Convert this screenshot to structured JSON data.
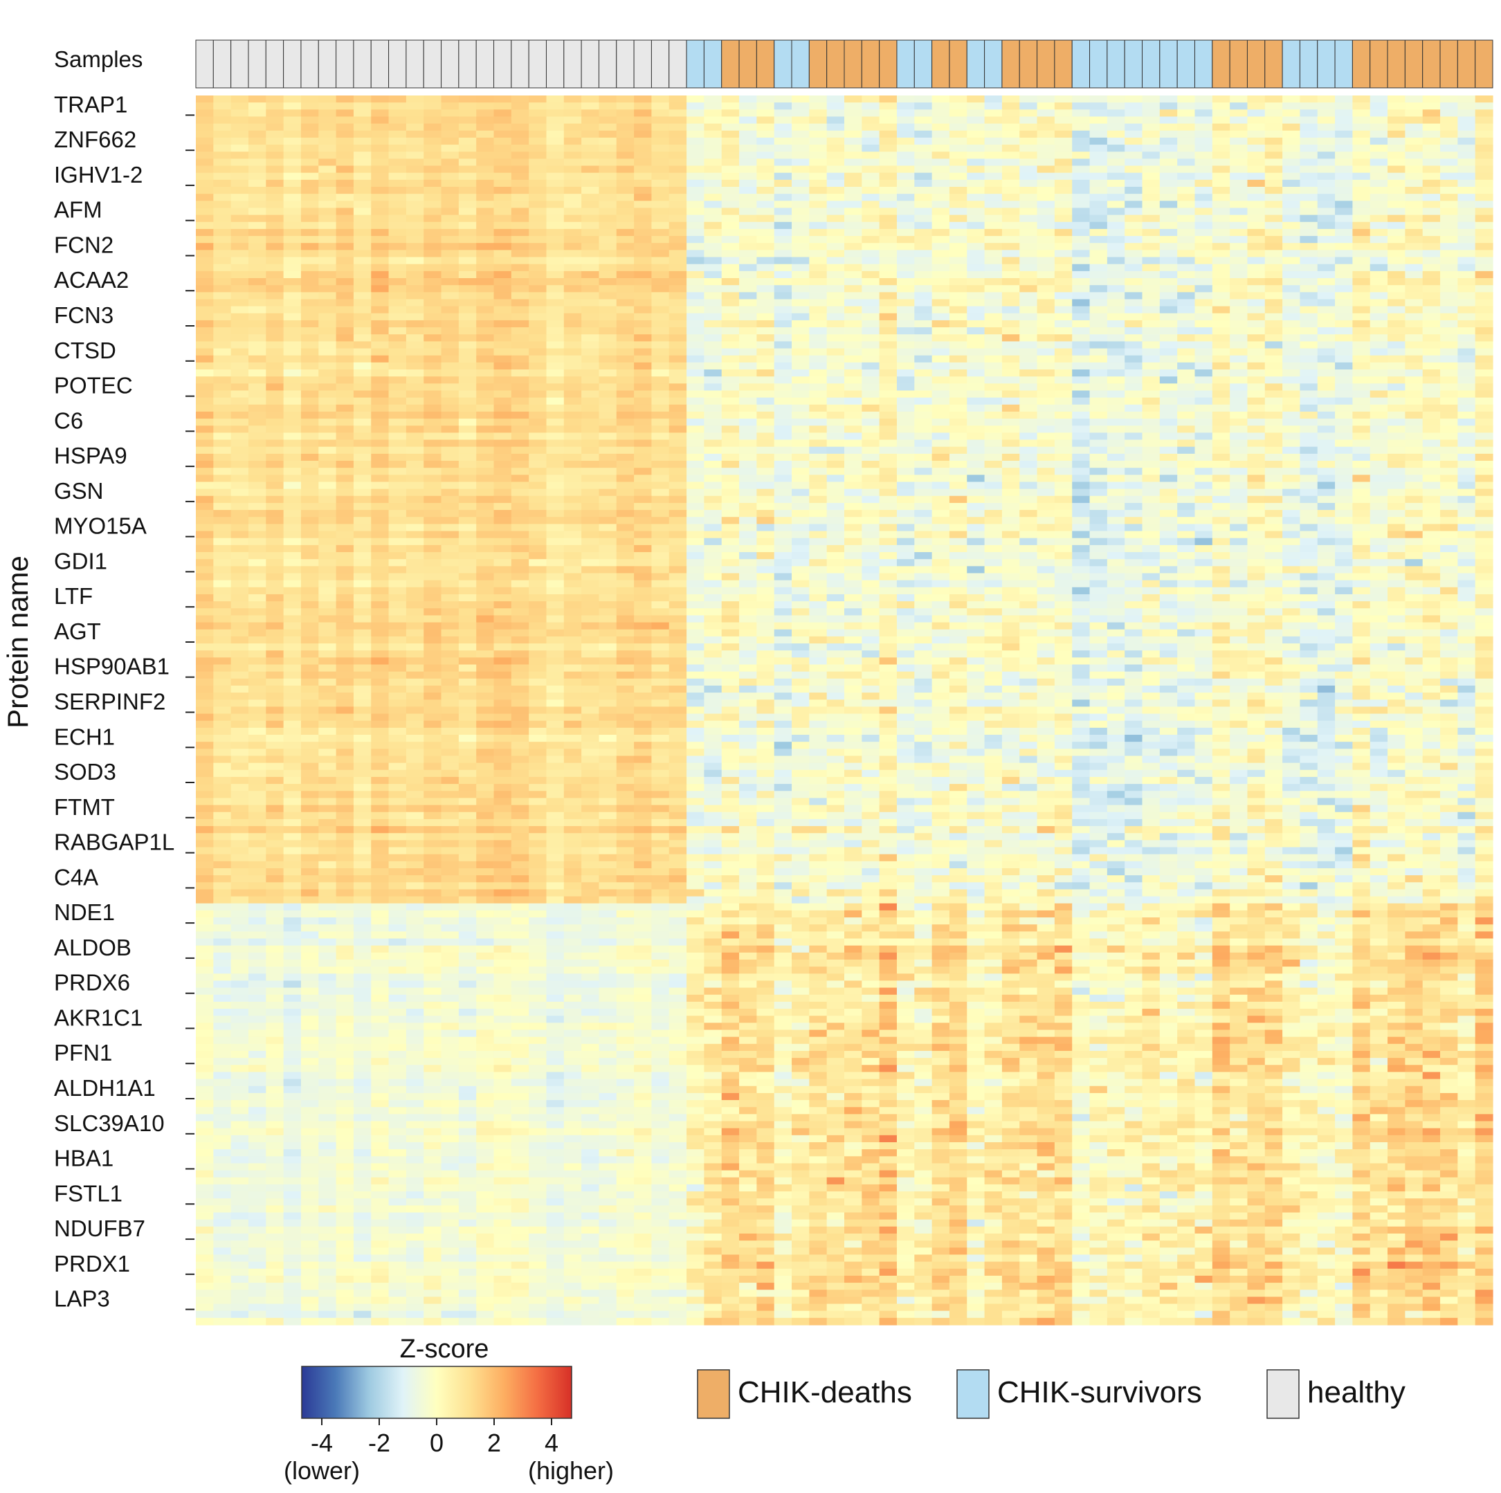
{
  "chart_data": {
    "type": "heatmap",
    "ylabel": "Protein name",
    "annotation_label": "Samples",
    "colorbar": {
      "title": "Z-score",
      "range": [
        -4.7,
        4.7
      ],
      "ticks": [
        -4,
        -2,
        0,
        2,
        4
      ],
      "tick_labels": [
        "-4",
        "-2",
        "0",
        "2",
        "4"
      ],
      "low_label": "(lower)",
      "high_label": "(higher)",
      "stops": [
        "#2b3a96",
        "#4a79b8",
        "#9ecae1",
        "#e0f3f8",
        "#ffffbf",
        "#fee090",
        "#fdae61",
        "#f46d43",
        "#d73027"
      ]
    },
    "groups": [
      {
        "name": "CHIK-deaths",
        "color": "#eeae67"
      },
      {
        "name": "CHIK-survivors",
        "color": "#b3dcf2"
      },
      {
        "name": "healthy",
        "color": "#e8e8e8"
      }
    ],
    "sample_groups": [
      "healthy",
      "healthy",
      "healthy",
      "healthy",
      "healthy",
      "healthy",
      "healthy",
      "healthy",
      "healthy",
      "healthy",
      "healthy",
      "healthy",
      "healthy",
      "healthy",
      "healthy",
      "healthy",
      "healthy",
      "healthy",
      "healthy",
      "healthy",
      "healthy",
      "healthy",
      "healthy",
      "healthy",
      "healthy",
      "healthy",
      "healthy",
      "healthy",
      "CHIK-survivors",
      "CHIK-survivors",
      "CHIK-deaths",
      "CHIK-deaths",
      "CHIK-deaths",
      "CHIK-survivors",
      "CHIK-survivors",
      "CHIK-deaths",
      "CHIK-deaths",
      "CHIK-deaths",
      "CHIK-deaths",
      "CHIK-deaths",
      "CHIK-survivors",
      "CHIK-survivors",
      "CHIK-deaths",
      "CHIK-deaths",
      "CHIK-survivors",
      "CHIK-survivors",
      "CHIK-deaths",
      "CHIK-deaths",
      "CHIK-deaths",
      "CHIK-deaths",
      "CHIK-survivors",
      "CHIK-survivors",
      "CHIK-survivors",
      "CHIK-survivors",
      "CHIK-survivors",
      "CHIK-survivors",
      "CHIK-survivors",
      "CHIK-survivors",
      "CHIK-deaths",
      "CHIK-deaths",
      "CHIK-deaths",
      "CHIK-deaths",
      "CHIK-survivors",
      "CHIK-survivors",
      "CHIK-survivors",
      "CHIK-survivors",
      "CHIK-deaths",
      "CHIK-deaths",
      "CHIK-deaths",
      "CHIK-deaths",
      "CHIK-deaths",
      "CHIK-deaths",
      "CHIK-deaths",
      "CHIK-deaths"
    ],
    "protein_labels": [
      "TRAP1",
      "ZNF662",
      "IGHV1-2",
      "AFM",
      "FCN2",
      "ACAA2",
      "FCN3",
      "CTSD",
      "POTEC",
      "C6",
      "HSPA9",
      "GSN",
      "MYO15A",
      "GDI1",
      "LTF",
      "AGT",
      "HSP90AB1",
      "SERPINF2",
      "ECH1",
      "SOD3",
      "FTMT",
      "RABGAP1L",
      "C4A",
      "NDE1",
      "ALDOB",
      "PRDX6",
      "AKR1C1",
      "PFN1",
      "ALDH1A1",
      "SLC39A10",
      "HBA1",
      "FSTL1",
      "NDUFB7",
      "PRDX1",
      "LAP3"
    ],
    "n_rows": 175,
    "n_up_rows": 115,
    "pattern": {
      "upper_block": {
        "healthy": 1.2,
        "CHIK-survivors": -0.7,
        "CHIK-deaths": -0.1
      },
      "lower_block": {
        "healthy": -0.5,
        "CHIK-survivors": 0.2,
        "CHIK-deaths": 1.1
      },
      "noise_sd": 0.55,
      "seed": 20240611
    }
  }
}
